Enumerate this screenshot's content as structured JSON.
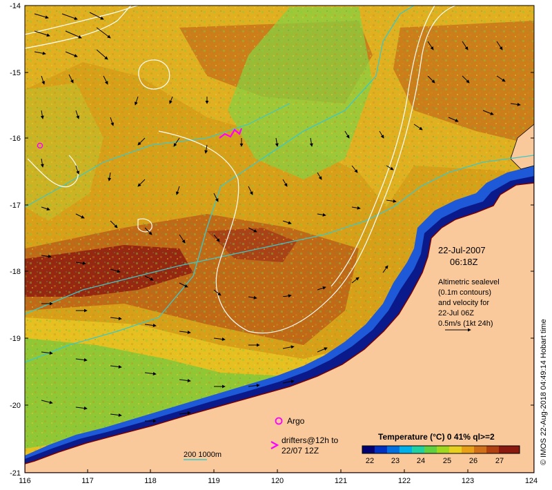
{
  "map": {
    "date": "22-Jul-2007",
    "time": "06:18Z",
    "legend_lines": [
      "Altimetric sealevel",
      "(0.1m contours)",
      "and velocity for",
      "22-Jul 06Z",
      "0.5m/s (1kt 24h)"
    ],
    "x_ticks": [
      "116",
      "117",
      "118",
      "119",
      "120",
      "121",
      "122",
      "123",
      "124"
    ],
    "y_ticks": [
      "-14",
      "-15",
      "-16",
      "-17",
      "-18",
      "-19",
      "-20",
      "-21"
    ],
    "argo_label": "Argo",
    "drifters_line1": "drifters@12h to",
    "drifters_line2": "22/07 12Z",
    "isobath_label": "200  1000m",
    "colorbar_title": "Temperature (°C) 0 41% ql>=2",
    "colorbar_ticks": [
      "22",
      "23",
      "24",
      "25",
      "26",
      "27"
    ],
    "credit": "© IMOS 22-Aug-2018 04:49:14 Hobart time",
    "colors": {
      "land": "#f9c89b",
      "shelf_deep": "#0a1a8a",
      "warm": "#d27a1a",
      "hot": "#9a2a10",
      "mid": "#e8c020",
      "cool": "#6ec83a",
      "contour": "#ffffff",
      "isobath": "#3cc8c8",
      "argo": "#ff00ff"
    },
    "argo_float": {
      "lon": 116.25,
      "lat": -16.1
    }
  }
}
